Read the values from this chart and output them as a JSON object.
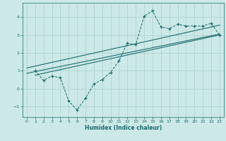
{
  "xlabel": "Humidex (Indice chaleur)",
  "ylabel": "",
  "xlim": [
    -0.5,
    23.5
  ],
  "ylim": [
    -1.6,
    4.8
  ],
  "xticks": [
    0,
    1,
    2,
    3,
    4,
    5,
    6,
    7,
    8,
    9,
    10,
    11,
    12,
    13,
    14,
    15,
    16,
    17,
    18,
    19,
    20,
    21,
    22,
    23
  ],
  "yticks": [
    -1,
    0,
    1,
    2,
    3,
    4
  ],
  "bg_color": "#cce8e8",
  "line_color": "#1a6b6b",
  "grid_color": "#b0d4d4",
  "dashed_x": [
    1,
    2,
    3,
    4,
    5,
    6,
    7,
    8,
    9,
    10,
    11,
    12,
    13,
    14,
    15,
    16,
    17,
    18,
    19,
    20,
    21,
    22,
    23
  ],
  "dashed_y": [
    1.0,
    0.45,
    0.7,
    0.6,
    -0.7,
    -1.2,
    -0.55,
    0.25,
    0.5,
    0.9,
    1.55,
    2.55,
    2.45,
    4.05,
    4.35,
    3.45,
    3.35,
    3.6,
    3.5,
    3.5,
    3.5,
    3.65,
    3.0
  ],
  "line1_x": [
    0,
    23
  ],
  "line1_y": [
    0.85,
    3.05
  ],
  "line2_x": [
    0,
    23
  ],
  "line2_y": [
    1.15,
    3.55
  ],
  "line3_x": [
    1,
    23
  ],
  "line3_y": [
    0.75,
    3.0
  ]
}
